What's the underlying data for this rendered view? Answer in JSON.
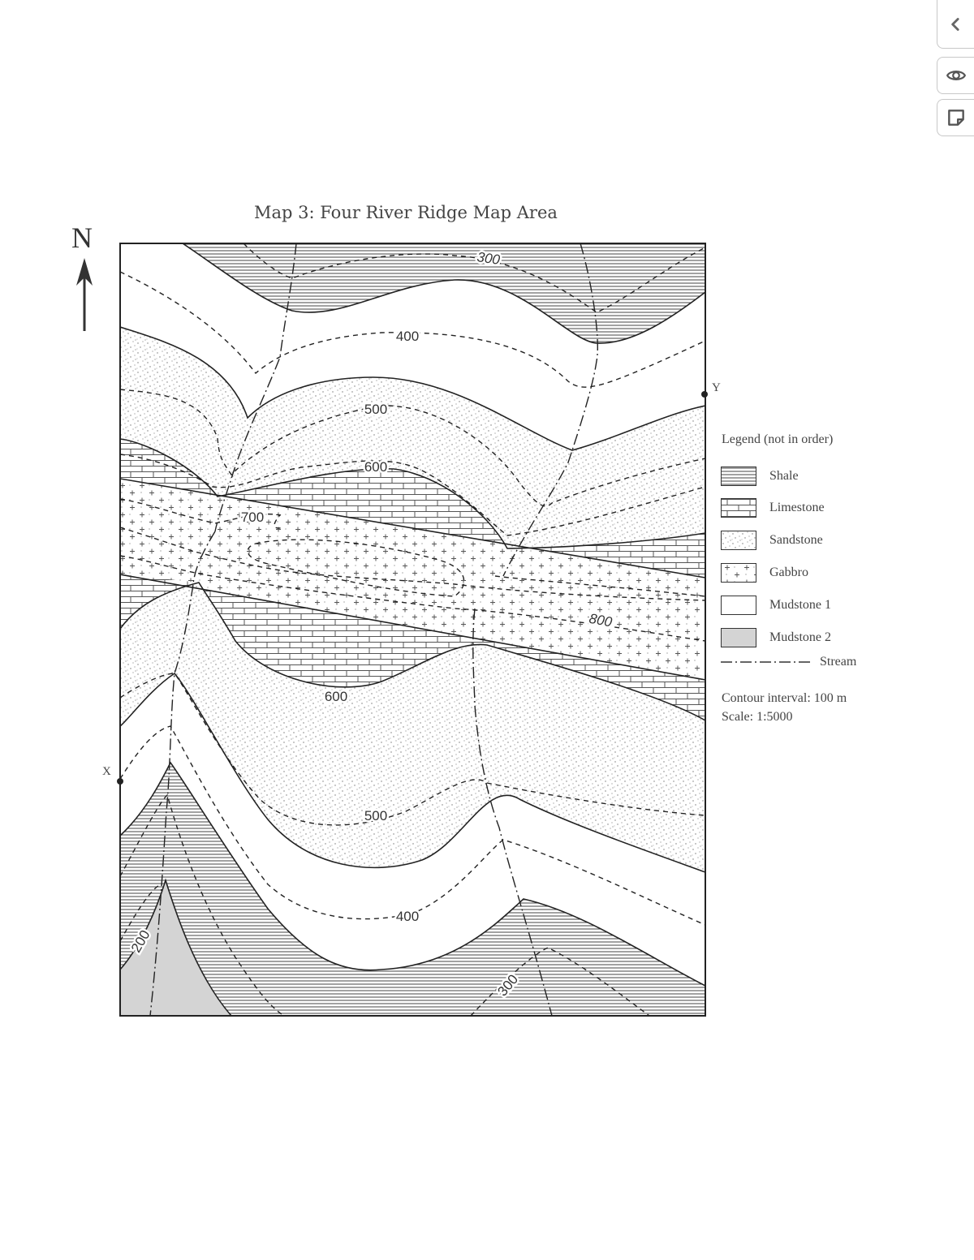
{
  "map": {
    "title": "Map 3: Four River Ridge Map Area",
    "north_label": "N",
    "point_x_label": "X",
    "point_y_label": "Y",
    "contour_labels": {
      "c300_top": "300",
      "c400_top": "400",
      "c500_top": "500",
      "c600_top": "600",
      "c700": "700",
      "c800": "800",
      "c600_bottom": "600",
      "c500_bottom": "500",
      "c400_bottom": "400",
      "c300_bottom": "300",
      "c200": "200"
    }
  },
  "legend": {
    "title": "Legend (not in order)",
    "items": [
      {
        "label": "Shale",
        "pattern": "horizontal-lines"
      },
      {
        "label": "Limestone",
        "pattern": "brick"
      },
      {
        "label": "Sandstone",
        "pattern": "dots"
      },
      {
        "label": "Gabbro",
        "pattern": "crosses"
      },
      {
        "label": "Mudstone 1",
        "pattern": "blank"
      },
      {
        "label": "Mudstone 2",
        "pattern": "gray-fill",
        "color": "#d4d4d4"
      }
    ],
    "stream_label": "Stream",
    "contour_interval": "Contour interval: 100 m",
    "scale": "Scale: 1:5000"
  },
  "toolbar": {
    "icons": [
      "chevron-left-icon",
      "eye-icon",
      "sticky-note-icon"
    ]
  }
}
